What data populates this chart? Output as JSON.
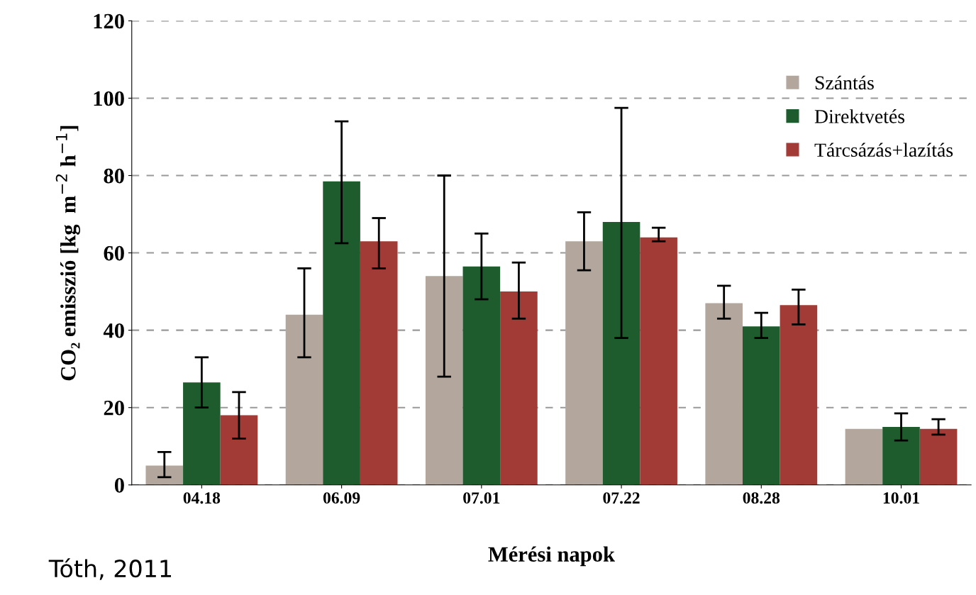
{
  "chart_data": {
    "type": "bar",
    "xlabel": "Mérési napok",
    "ylabel": "CO₂ emisszió [kg  m$^{−2}$ h$^{−1}$]",
    "categories": [
      "04.18",
      "06.09",
      "07.01",
      "07.22",
      "08.28",
      "10.01"
    ],
    "series": [
      {
        "name": "Szántás",
        "color": "#b3a79d",
        "values": [
          5,
          44,
          54,
          63,
          47,
          14.5
        ],
        "errors": [
          [
            2,
            8.5
          ],
          [
            33,
            56
          ],
          [
            28,
            80
          ],
          [
            55.5,
            70.5
          ],
          [
            43,
            51.5
          ],
          null
        ]
      },
      {
        "name": "Direktvetés",
        "color": "#1e5c2e",
        "values": [
          26.5,
          78.5,
          56.5,
          68,
          41,
          15
        ],
        "errors": [
          [
            20,
            33
          ],
          [
            62.5,
            94
          ],
          [
            48,
            65
          ],
          [
            38,
            97.5
          ],
          [
            38,
            44.5
          ],
          [
            11.5,
            18.5
          ]
        ]
      },
      {
        "name": "Tárcsázás+lazítás",
        "color": "#a23a36",
        "values": [
          18,
          63,
          50,
          64,
          46.5,
          14.5
        ],
        "errors": [
          [
            12,
            24
          ],
          [
            56,
            69
          ],
          [
            43,
            57.5
          ],
          [
            63,
            66.5
          ],
          [
            41.5,
            50.5
          ],
          [
            13,
            17
          ]
        ]
      }
    ],
    "ylim": [
      0,
      120
    ],
    "yticks": [
      0,
      20,
      40,
      60,
      80,
      100,
      120
    ],
    "grid": "y",
    "legend": "top right",
    "annotations": [
      "Tóth, 2011"
    ]
  }
}
